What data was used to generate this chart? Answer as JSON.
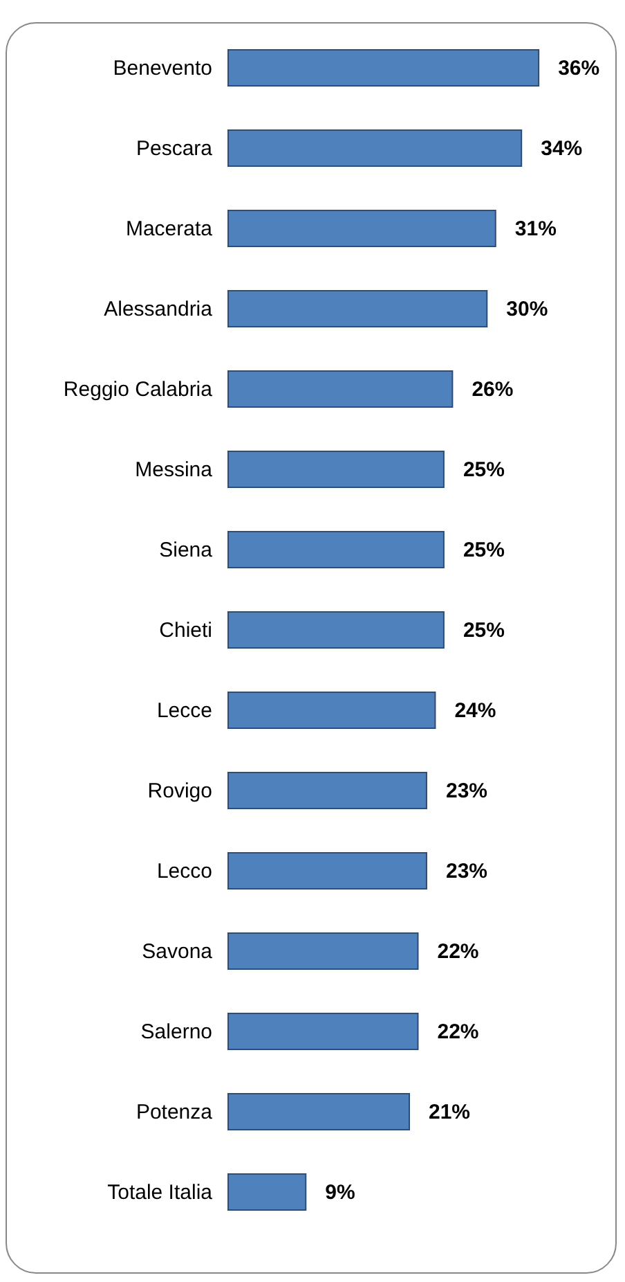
{
  "chart_data": {
    "type": "bar",
    "orientation": "horizontal",
    "categories": [
      "Benevento",
      "Pescara",
      "Macerata",
      "Alessandria",
      "Reggio Calabria",
      "Messina",
      "Siena",
      "Chieti",
      "Lecce",
      "Rovigo",
      "Lecco",
      "Savona",
      "Salerno",
      "Potenza",
      "Totale Italia"
    ],
    "values": [
      36,
      34,
      31,
      30,
      26,
      25,
      25,
      25,
      24,
      23,
      23,
      22,
      22,
      21,
      9
    ],
    "value_labels": [
      "36%",
      "34%",
      "31%",
      "30%",
      "26%",
      "25%",
      "25%",
      "25%",
      "24%",
      "23%",
      "23%",
      "22%",
      "22%",
      "21%",
      "9%"
    ],
    "color": "#4f81bd"
  }
}
